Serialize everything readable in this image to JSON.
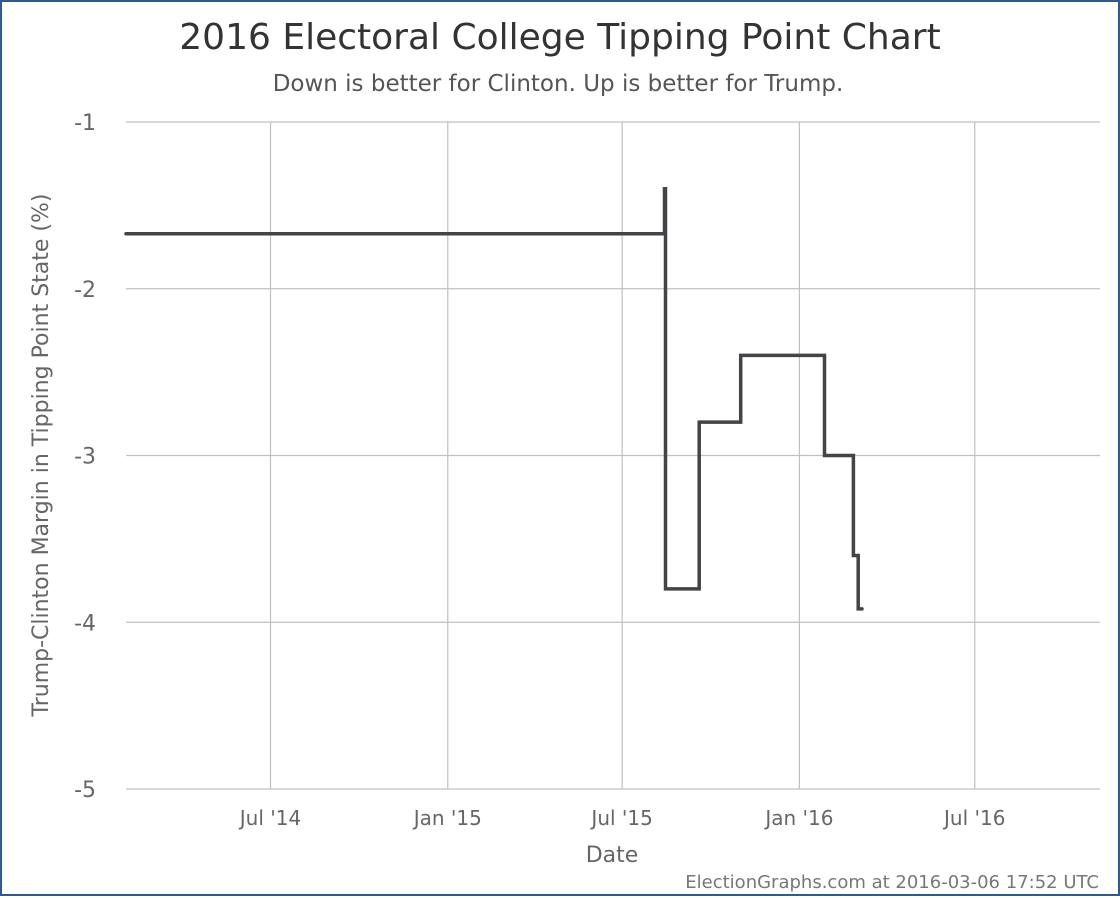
{
  "chart_data": {
    "type": "line",
    "title": "2016 Electoral College Tipping Point Chart",
    "subtitle": "Down is better for Clinton. Up is better for Trump.",
    "xlabel": "Date",
    "ylabel": "Trump-Clinton Margin in Tipping Point State (%)",
    "credit": "ElectionGraphs.com at 2016-03-06 17:52 UTC",
    "xlim": [
      "2014-02-01",
      "2016-11-08"
    ],
    "ylim": [
      -5,
      -1
    ],
    "x_ticks": [
      {
        "date": "2014-07-01",
        "label": "Jul '14"
      },
      {
        "date": "2015-01-01",
        "label": "Jan '15"
      },
      {
        "date": "2015-07-01",
        "label": "Jul '15"
      },
      {
        "date": "2016-01-01",
        "label": "Jan '16"
      },
      {
        "date": "2016-07-01",
        "label": "Jul '16"
      }
    ],
    "y_ticks": [
      {
        "value": -1,
        "label": "-1"
      },
      {
        "value": -2,
        "label": "-2"
      },
      {
        "value": -3,
        "label": "-3"
      },
      {
        "value": -4,
        "label": "-4"
      },
      {
        "value": -5,
        "label": "-5"
      }
    ],
    "grid": true,
    "line_color": "#444448",
    "series": [
      {
        "points": [
          {
            "x": "2014-02-01",
            "y": -1.67
          },
          {
            "x": "2015-08-14",
            "y": -1.67
          },
          {
            "x": "2015-08-14",
            "y": -1.4
          },
          {
            "x": "2015-08-15",
            "y": -1.4
          },
          {
            "x": "2015-08-15",
            "y": -3.8
          },
          {
            "x": "2015-09-19",
            "y": -3.8
          },
          {
            "x": "2015-09-19",
            "y": -2.8
          },
          {
            "x": "2015-11-01",
            "y": -2.8
          },
          {
            "x": "2015-11-01",
            "y": -2.4
          },
          {
            "x": "2016-01-27",
            "y": -2.4
          },
          {
            "x": "2016-01-27",
            "y": -3.0
          },
          {
            "x": "2016-02-26",
            "y": -3.0
          },
          {
            "x": "2016-02-26",
            "y": -3.6
          },
          {
            "x": "2016-03-02",
            "y": -3.6
          },
          {
            "x": "2016-03-02",
            "y": -3.92
          },
          {
            "x": "2016-03-06",
            "y": -3.92
          }
        ]
      }
    ]
  }
}
